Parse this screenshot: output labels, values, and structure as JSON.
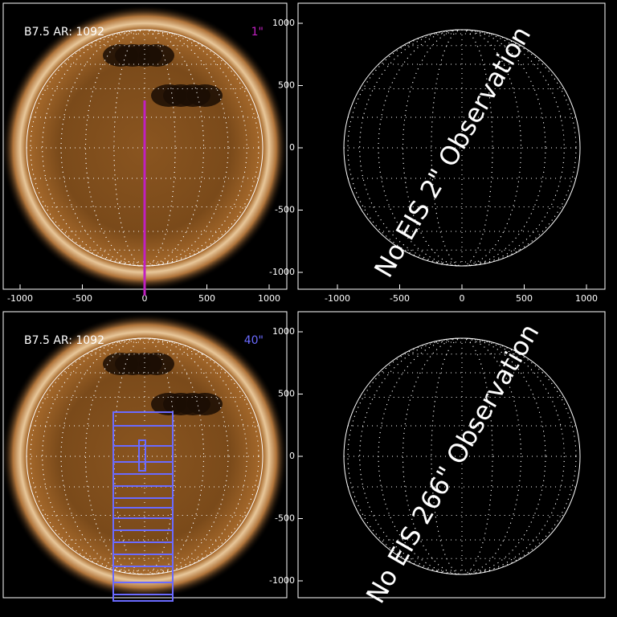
{
  "panels": [
    {
      "label": "B7.5 AR: 1092",
      "resolution": "1\"",
      "xticks": [
        -1000,
        -500,
        0,
        500,
        1000
      ]
    },
    {
      "message": "No EIS 2\" Observation",
      "xticks": [
        -1000,
        -500,
        0,
        500,
        1000
      ],
      "yticks": [
        1000,
        500,
        0,
        -500,
        -1000
      ]
    },
    {
      "label": "B7.5 AR: 1092",
      "resolution": "40\""
    },
    {
      "message": "No EIS 266\" Observation",
      "yticks": [
        1000,
        500,
        0,
        -500,
        -1000
      ]
    }
  ]
}
